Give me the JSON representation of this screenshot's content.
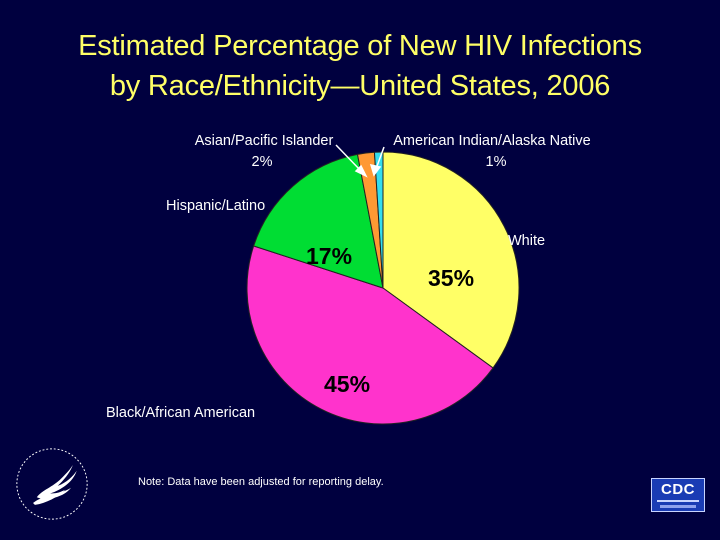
{
  "title": {
    "line1": "Estimated Percentage of New HIV Infections",
    "line2": "by Race/Ethnicity—United States, 2006"
  },
  "chart_data": {
    "type": "pie",
    "title": "Estimated Percentage of New HIV Infections by Race/Ethnicity—United States, 2006",
    "slices": [
      {
        "name": "White",
        "value": 35,
        "pct_label": "35%",
        "color": "#ffff66"
      },
      {
        "name": "Black/African American",
        "value": 45,
        "pct_label": "45%",
        "color": "#ff33cc"
      },
      {
        "name": "Hispanic/Latino",
        "value": 17,
        "pct_label": "17%",
        "color": "#00dd33"
      },
      {
        "name": "Asian/Pacific Islander",
        "value": 2,
        "pct_label": "2%",
        "color": "#ff9933"
      },
      {
        "name": "American Indian/Alaska Native",
        "value": 1,
        "pct_label": "1%",
        "color": "#33ddee"
      }
    ]
  },
  "note": "Note: Data have been adjusted for reporting delay.",
  "logos": {
    "cdc": "CDC",
    "hhs_icon": "hhs-eagle-seal-icon"
  }
}
